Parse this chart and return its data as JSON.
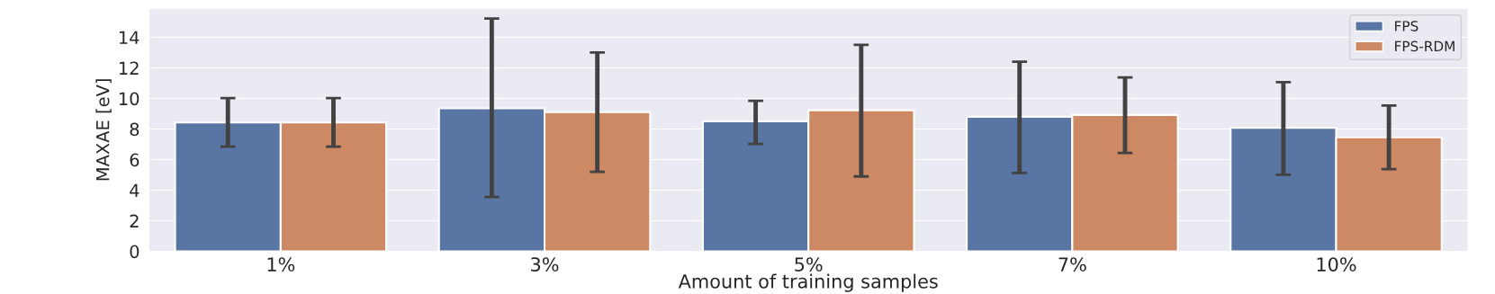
{
  "chart_data": {
    "type": "bar",
    "xlabel": "Amount of training samples",
    "ylabel": "MAXAE [eV]",
    "categories": [
      "1%",
      "3%",
      "5%",
      "7%",
      "10%"
    ],
    "series": [
      {
        "name": "FPS",
        "color": "#5975a4",
        "values": [
          8.43,
          9.35,
          8.5,
          8.8,
          8.07
        ],
        "errors": [
          [
            6.85,
            10.02
          ],
          [
            3.55,
            15.22
          ],
          [
            7.03,
            9.84
          ],
          [
            5.13,
            12.4
          ],
          [
            5.01,
            11.06
          ]
        ]
      },
      {
        "name": "FPS-RDM",
        "color": "#cc8963",
        "values": [
          8.43,
          9.1,
          9.23,
          8.92,
          7.46
        ],
        "errors": [
          [
            6.85,
            10.02
          ],
          [
            5.2,
            13.0
          ],
          [
            4.9,
            13.5
          ],
          [
            6.43,
            11.37
          ],
          [
            5.38,
            9.54
          ]
        ]
      }
    ],
    "ylim": [
      0,
      15.9
    ],
    "yticks": [
      0,
      2,
      4,
      6,
      8,
      10,
      12,
      14
    ],
    "grid": "y",
    "legend": "top right"
  }
}
